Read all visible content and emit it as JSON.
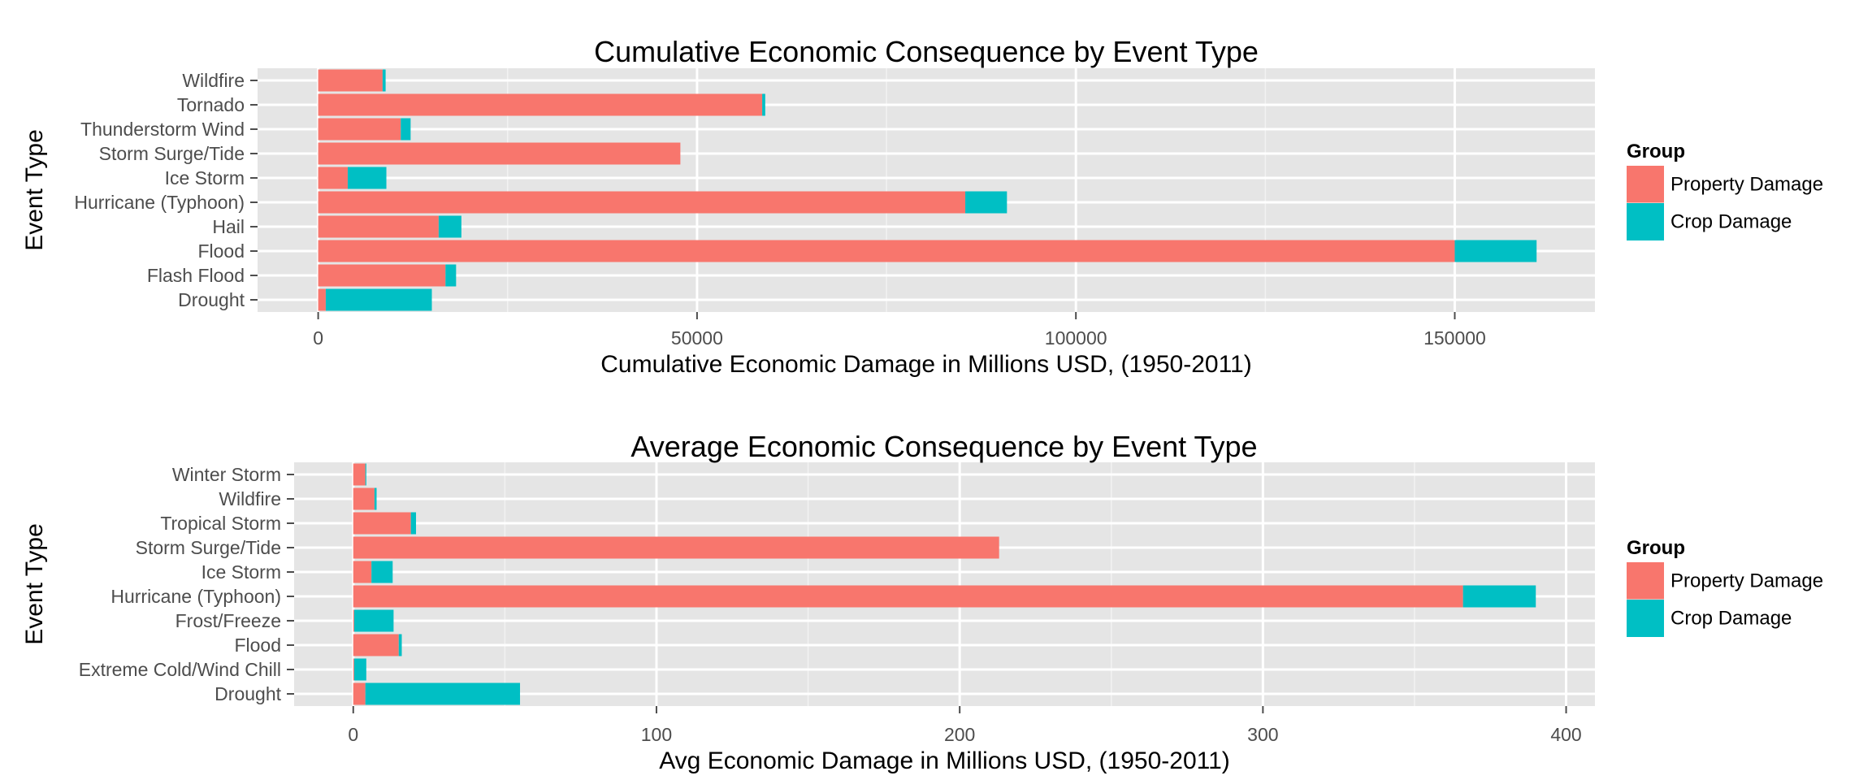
{
  "chart_data": [
    {
      "type": "bar",
      "orientation": "horizontal",
      "stacked": true,
      "title": "Cumulative Economic Consequence by Event Type",
      "xlabel": "Cumulative Economic Damage in Millions USD, (1950-2011)",
      "ylabel": "Event Type",
      "categories": [
        "Wildfire",
        "Tornado",
        "Thunderstorm Wind",
        "Storm Surge/Tide",
        "Ice Storm",
        "Hurricane (Typhoon)",
        "Hail",
        "Flood",
        "Flash Flood",
        "Drought"
      ],
      "series": [
        {
          "name": "Property Damage",
          "color": "#F8766D",
          "values": [
            8500,
            58600,
            10900,
            47800,
            3900,
            85400,
            15900,
            150000,
            16800,
            1000
          ]
        },
        {
          "name": "Crop Damage",
          "color": "#00BFC4",
          "values": [
            400,
            400,
            1300,
            0,
            5100,
            5500,
            3000,
            10800,
            1400,
            14000
          ]
        }
      ],
      "xlim": [
        -8000,
        168500
      ],
      "xticks": [
        0,
        50000,
        100000,
        150000
      ],
      "xtick_labels": [
        "0",
        "50000",
        "100000",
        "150000"
      ],
      "legend": {
        "title": "Group",
        "position": "right",
        "entries": [
          "Property Damage",
          "Crop Damage"
        ]
      },
      "grid": true
    },
    {
      "type": "bar",
      "orientation": "horizontal",
      "stacked": true,
      "title": "Average Economic Consequence by Event Type",
      "xlabel": "Avg Economic Damage in Millions USD, (1950-2011)",
      "ylabel": "Event Type",
      "categories": [
        "Winter Storm",
        "Wildfire",
        "Tropical Storm",
        "Storm Surge/Tide",
        "Ice Storm",
        "Hurricane (Typhoon)",
        "Frost/Freeze",
        "Flood",
        "Extreme Cold/Wind Chill",
        "Drought"
      ],
      "series": [
        {
          "name": "Property Damage",
          "color": "#F8766D",
          "values": [
            4,
            7,
            19,
            213,
            6,
            366,
            0.3,
            15,
            0.3,
            4
          ]
        },
        {
          "name": "Crop Damage",
          "color": "#00BFC4",
          "values": [
            0.3,
            0.7,
            1.7,
            0,
            7,
            24,
            13,
            1,
            4,
            51
          ]
        }
      ],
      "xlim": [
        -19.5,
        409.5
      ],
      "xticks": [
        0,
        100,
        200,
        300,
        400
      ],
      "xtick_labels": [
        "0",
        "100",
        "200",
        "300",
        "400"
      ],
      "legend": {
        "title": "Group",
        "position": "right",
        "entries": [
          "Property Damage",
          "Crop Damage"
        ]
      },
      "grid": true
    }
  ]
}
